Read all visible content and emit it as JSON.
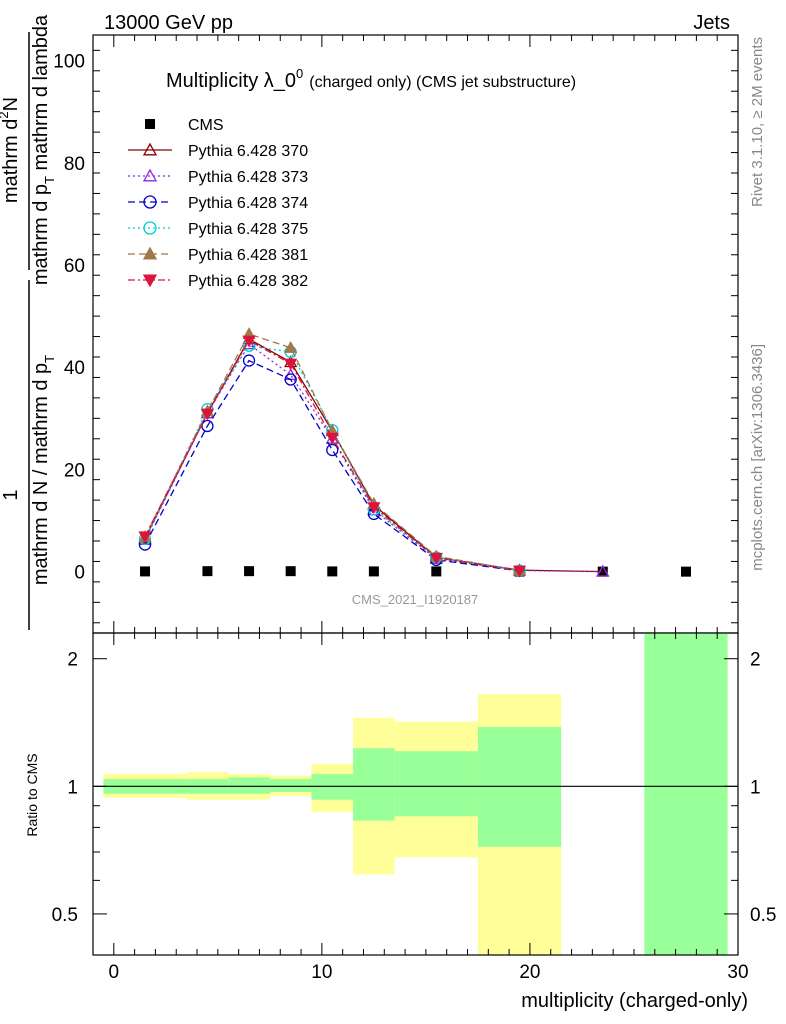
{
  "header": {
    "left": "13000 GeV pp",
    "right": "Jets"
  },
  "side_text": {
    "rivet": "Rivet 3.1.10, ≥ 2M events",
    "mcplots": "mcplots.cern.ch [arXiv:1306.3436]"
  },
  "chart_data": [
    {
      "type": "line",
      "title_main": "Multiplicity λ_0",
      "title_sup": "0",
      "title_suffix": "(charged only) (CMS jet substructure)",
      "ylabel_numerator": "mathrm d",
      "ylabel_numerator_sup": "2",
      "ylabel_numerator_tail": "N",
      "ylabel_den1": "mathrm d p",
      "ylabel_den1_sub": "T",
      "ylabel_den2": " mathrm d lambda",
      "ylabel_frac_num": "1",
      "ylabel_frac_den": "mathrm d N / mathrm d p",
      "ylabel_frac_den_sub": "T",
      "watermark": "CMS_2021_I1920187",
      "ylim": [
        -12,
        105
      ],
      "yticks": [
        0,
        20,
        40,
        60,
        80,
        100
      ],
      "xlim": [
        -1,
        30
      ],
      "log_y": false,
      "grid": false,
      "legend_position": "top-left",
      "series": [
        {
          "name": "CMS",
          "color": "#000000",
          "marker": "square-filled",
          "line": "none",
          "points": [
            [
              1.5,
              0.05
            ],
            [
              4.5,
              0.1
            ],
            [
              6.5,
              0.1
            ],
            [
              8.5,
              0.1
            ],
            [
              10.5,
              0.05
            ],
            [
              12.5,
              0.05
            ],
            [
              15.5,
              0.05
            ],
            [
              19.5,
              0.02
            ],
            [
              23.5,
              0.01
            ],
            [
              27.5,
              0.005
            ]
          ]
        },
        {
          "name": "Pythia 6.428 370",
          "color": "#8b0000",
          "marker": "triangle-open",
          "line": "solid",
          "points": [
            [
              1.5,
              6.5
            ],
            [
              4.5,
              31
            ],
            [
              6.5,
              45.5
            ],
            [
              8.5,
              41
            ],
            [
              10.5,
              27.5
            ],
            [
              12.5,
              13
            ],
            [
              15.5,
              2.8
            ],
            [
              19.5,
              0.3
            ],
            [
              23.5,
              0.02
            ]
          ]
        },
        {
          "name": "Pythia 6.428 373",
          "color": "#8a2be2",
          "marker": "triangle-open",
          "line": "dotted",
          "points": [
            [
              1.5,
              6.2
            ],
            [
              4.5,
              31
            ],
            [
              6.5,
              44.5
            ],
            [
              8.5,
              38.5
            ],
            [
              10.5,
              26
            ],
            [
              12.5,
              12
            ],
            [
              15.5,
              2.5
            ],
            [
              19.5,
              0.2
            ],
            [
              23.5,
              0.01
            ]
          ]
        },
        {
          "name": "Pythia 6.428 374",
          "color": "#0000cd",
          "marker": "circle-open",
          "line": "dashed",
          "points": [
            [
              1.5,
              5.3
            ],
            [
              4.5,
              28.5
            ],
            [
              6.5,
              41.3
            ],
            [
              8.5,
              37.6
            ],
            [
              10.5,
              23.8
            ],
            [
              12.5,
              11.3
            ],
            [
              15.5,
              2.3
            ],
            [
              19.5,
              0.15
            ]
          ]
        },
        {
          "name": "Pythia 6.428 375",
          "color": "#00ced1",
          "marker": "circle-open",
          "line": "dotted",
          "points": [
            [
              1.5,
              6.4
            ],
            [
              4.5,
              31.8
            ],
            [
              6.5,
              44.2
            ],
            [
              8.5,
              43
            ],
            [
              10.5,
              27.7
            ],
            [
              12.5,
              12.2
            ],
            [
              15.5,
              2.8
            ],
            [
              19.5,
              0.2
            ]
          ]
        },
        {
          "name": "Pythia 6.428 381",
          "color": "#a0784b",
          "marker": "triangle-filled",
          "line": "dashed",
          "points": [
            [
              1.5,
              6.8
            ],
            [
              4.5,
              31.4
            ],
            [
              6.5,
              46.5
            ],
            [
              8.5,
              43.8
            ],
            [
              10.5,
              27.6
            ],
            [
              12.5,
              13.3
            ],
            [
              15.5,
              3.0
            ],
            [
              19.5,
              0.25
            ]
          ]
        },
        {
          "name": "Pythia 6.428 382",
          "color": "#dc143c",
          "marker": "triangle-down-filled",
          "line": "dashdot",
          "points": [
            [
              1.5,
              6.9
            ],
            [
              4.5,
              30.9
            ],
            [
              6.5,
              45.2
            ],
            [
              8.5,
              40.7
            ],
            [
              10.5,
              26.2
            ],
            [
              12.5,
              12.6
            ],
            [
              15.5,
              2.7
            ],
            [
              19.5,
              0.2
            ]
          ]
        }
      ]
    },
    {
      "type": "area",
      "ylabel": "Ratio to CMS",
      "xlabel": "multiplicity (charged-only)",
      "xlim": [
        -1,
        30
      ],
      "xticks": [
        0,
        10,
        20,
        30
      ],
      "ylim": [
        0.4,
        2.3
      ],
      "log_y": true,
      "yticks": [
        0.5,
        1,
        2
      ],
      "reference_line": 1,
      "bands": [
        {
          "x0": -0.5,
          "x1": 3.5,
          "yellow": [
            0.94,
            1.07
          ],
          "green": [
            0.96,
            1.04
          ]
        },
        {
          "x0": 3.5,
          "x1": 5.5,
          "yellow": [
            0.93,
            1.08
          ],
          "green": [
            0.96,
            1.04
          ]
        },
        {
          "x0": 5.5,
          "x1": 7.5,
          "yellow": [
            0.93,
            1.07
          ],
          "green": [
            0.96,
            1.05
          ]
        },
        {
          "x0": 7.5,
          "x1": 9.5,
          "yellow": [
            0.95,
            1.06
          ],
          "green": [
            0.97,
            1.04
          ]
        },
        {
          "x0": 9.5,
          "x1": 11.5,
          "yellow": [
            0.87,
            1.13
          ],
          "green": [
            0.93,
            1.07
          ]
        },
        {
          "x0": 11.5,
          "x1": 13.5,
          "yellow": [
            0.62,
            1.45
          ],
          "green": [
            0.83,
            1.23
          ]
        },
        {
          "x0": 13.5,
          "x1": 17.5,
          "yellow": [
            0.68,
            1.42
          ],
          "green": [
            0.85,
            1.21
          ]
        },
        {
          "x0": 17.5,
          "x1": 21.5,
          "yellow": [
            0.3,
            1.65
          ],
          "green": [
            0.72,
            1.38
          ]
        },
        {
          "x0": 25.5,
          "x1": 29.5,
          "yellow": [
            0.3,
            2.5
          ],
          "green": [
            0.3,
            2.5
          ]
        }
      ]
    }
  ]
}
